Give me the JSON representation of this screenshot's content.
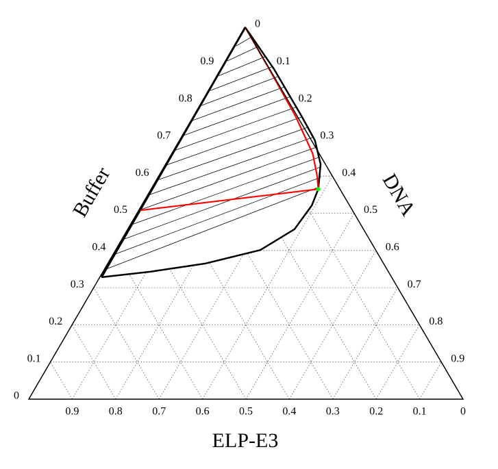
{
  "chart_data": {
    "type": "ternary",
    "axes": {
      "left": {
        "label": "Buffer",
        "ticks": [
          0,
          0.1,
          0.2,
          0.3,
          0.4,
          0.5,
          0.6,
          0.7,
          0.8,
          0.9
        ]
      },
      "right": {
        "label": "DNA",
        "ticks": [
          0,
          0.1,
          0.2,
          0.3,
          0.4,
          0.5,
          0.6,
          0.7,
          0.8,
          0.9
        ]
      },
      "bottom": {
        "label": "ELP-E3",
        "ticks": [
          0.9,
          0.8,
          0.7,
          0.6,
          0.5,
          0.4,
          0.3,
          0.2,
          0.1,
          0
        ]
      }
    },
    "grid": true,
    "binodal": {
      "color": "#000000",
      "buffer": [
        1,
        0.889,
        0.761,
        0.696,
        0.632,
        0.565,
        0.521,
        0.457,
        0.401,
        0.365,
        0.343,
        0.328
      ],
      "dna": [
        0,
        0.121,
        0.249,
        0.312,
        0.357,
        0.385,
        0.392,
        0.384,
        0.333,
        0.225,
        0.11,
        0.004
      ]
    },
    "tie_lines": {
      "color": "#000000",
      "buffer_left": [
        0.35,
        0.39,
        0.43,
        0.47,
        0.51,
        0.55,
        0.59,
        0.63,
        0.67,
        0.71,
        0.75,
        0.79,
        0.83,
        0.87,
        0.91,
        0.95
      ],
      "dna_left": [
        0.004,
        0.004,
        0.004,
        0.004,
        0.004,
        0.004,
        0.004,
        0.004,
        0.004,
        0.004,
        0.004,
        0.004,
        0.004,
        0.004,
        0.004,
        0.004
      ],
      "buffer_right": [
        0.57,
        0.597,
        0.624,
        0.651,
        0.678,
        0.705,
        0.732,
        0.759,
        0.786,
        0.813,
        0.84,
        0.867,
        0.894,
        0.921,
        0.948,
        0.975
      ],
      "dna_right": [
        0.383,
        0.375,
        0.36,
        0.345,
        0.325,
        0.305,
        0.28,
        0.25,
        0.225,
        0.195,
        0.17,
        0.14,
        0.115,
        0.085,
        0.055,
        0.028
      ]
    },
    "highlight": {
      "color": "#ff0000",
      "buffer": [
        1,
        0.889,
        0.761,
        0.66,
        0.6,
        0.565,
        0.508
      ],
      "dna": [
        0,
        0.11,
        0.235,
        0.325,
        0.365,
        0.385,
        0.004
      ]
    },
    "critical_point": {
      "color": "#00ff00",
      "buffer": 0.565,
      "dna": 0.385
    }
  }
}
